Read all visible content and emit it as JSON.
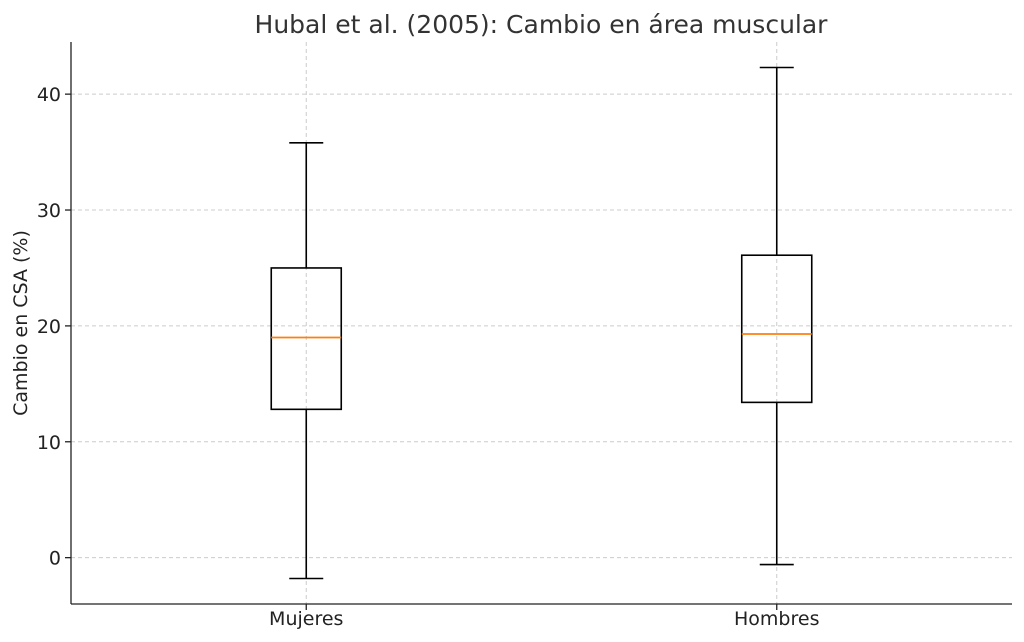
{
  "chart_data": {
    "type": "box",
    "title": "Hubal et al. (2005): Cambio en área muscular",
    "xlabel": "",
    "ylabel": "Cambio en CSA (%)",
    "ylim": [
      -4,
      44.5
    ],
    "yticks": [
      0,
      10,
      20,
      30,
      40
    ],
    "grid": true,
    "categories": [
      "Mujeres",
      "Hombres"
    ],
    "boxes": [
      {
        "category": "Mujeres",
        "whisker_low": -1.8,
        "q1": 12.8,
        "median": 19.0,
        "q3": 25.0,
        "whisker_high": 35.8
      },
      {
        "category": "Hombres",
        "whisker_low": -0.6,
        "q1": 13.4,
        "median": 19.3,
        "q3": 26.1,
        "whisker_high": 42.3
      }
    ],
    "colors": {
      "box": "#000000",
      "median": "#ff7f0e",
      "grid": "#cccccc"
    }
  }
}
